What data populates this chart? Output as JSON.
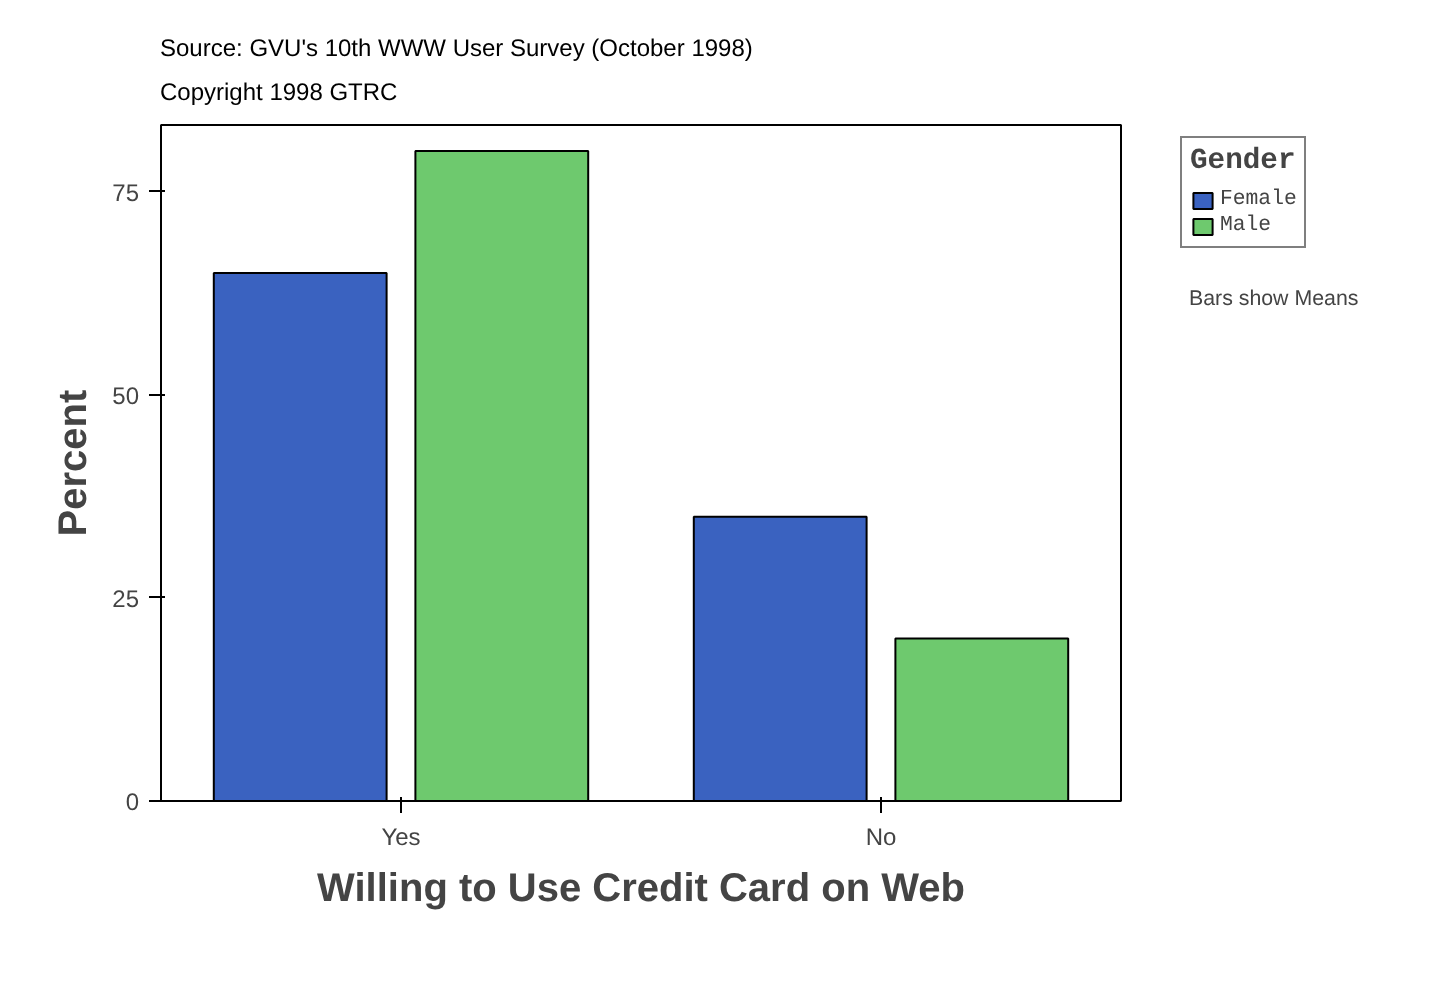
{
  "chart_data": {
    "type": "bar",
    "xlabel": "Willing to Use Credit Card on Web",
    "ylabel": "Percent",
    "legend_title": "Gender",
    "categories": [
      "Yes",
      "No"
    ],
    "series": [
      {
        "name": "Female",
        "color": "#3a62c0",
        "values": [
          65,
          35
        ]
      },
      {
        "name": "Male",
        "color": "#6ec96e",
        "values": [
          80,
          20
        ]
      }
    ],
    "ylim": [
      0,
      83.2
    ],
    "yticks": [
      0,
      25,
      50,
      75
    ],
    "grid": false,
    "legend": "top right",
    "annotations": [
      "Source: GVU's 10th WWW User Survey (October 1998)",
      "Copyright 1998 GTRC",
      "Bars show Means"
    ]
  }
}
